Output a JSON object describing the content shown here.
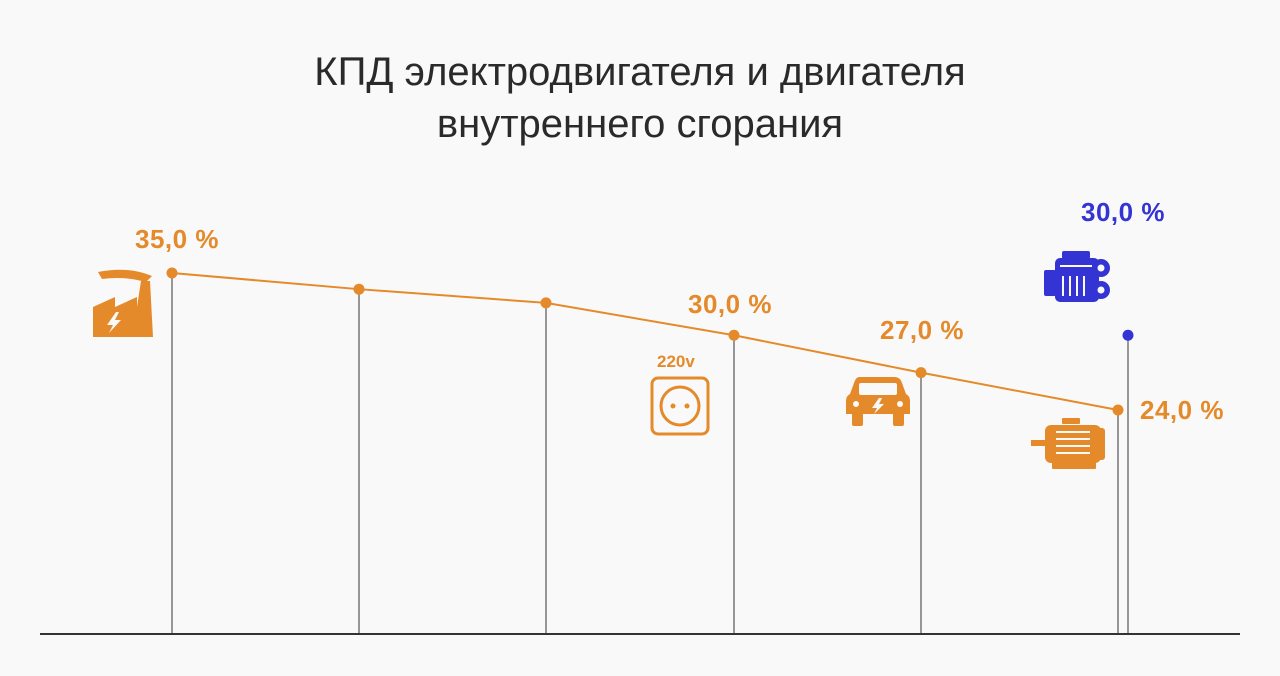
{
  "title_line1": "КПД электродвигателя и двигателя",
  "title_line2": "внутреннего сгорания",
  "colors": {
    "orange": "#e58a2a",
    "blue": "#3434d4",
    "stem": "#777777",
    "axis": "#333333",
    "title": "#2a2a2a"
  },
  "socket_label": "220v",
  "chart_data": {
    "type": "line",
    "title": "КПД электродвигателя и двигателя внутреннего сгорания",
    "series": [
      {
        "color": "#e58a2a",
        "values": [
          35.0,
          33.7,
          32.6,
          30.0,
          27.0,
          24.0
        ],
        "labels": [
          "35,0 %",
          "",
          "",
          "30,0 %",
          "27,0 %",
          "24,0 %"
        ],
        "icons": [
          "power-plant-icon",
          "",
          "",
          "power-socket-icon",
          "electric-car-icon",
          "electric-motor-icon"
        ]
      },
      {
        "color": "#3434d4",
        "values": [
          30.0
        ],
        "labels": [
          "30,0 %"
        ],
        "icons": [
          "combustion-engine-icon"
        ]
      }
    ]
  }
}
